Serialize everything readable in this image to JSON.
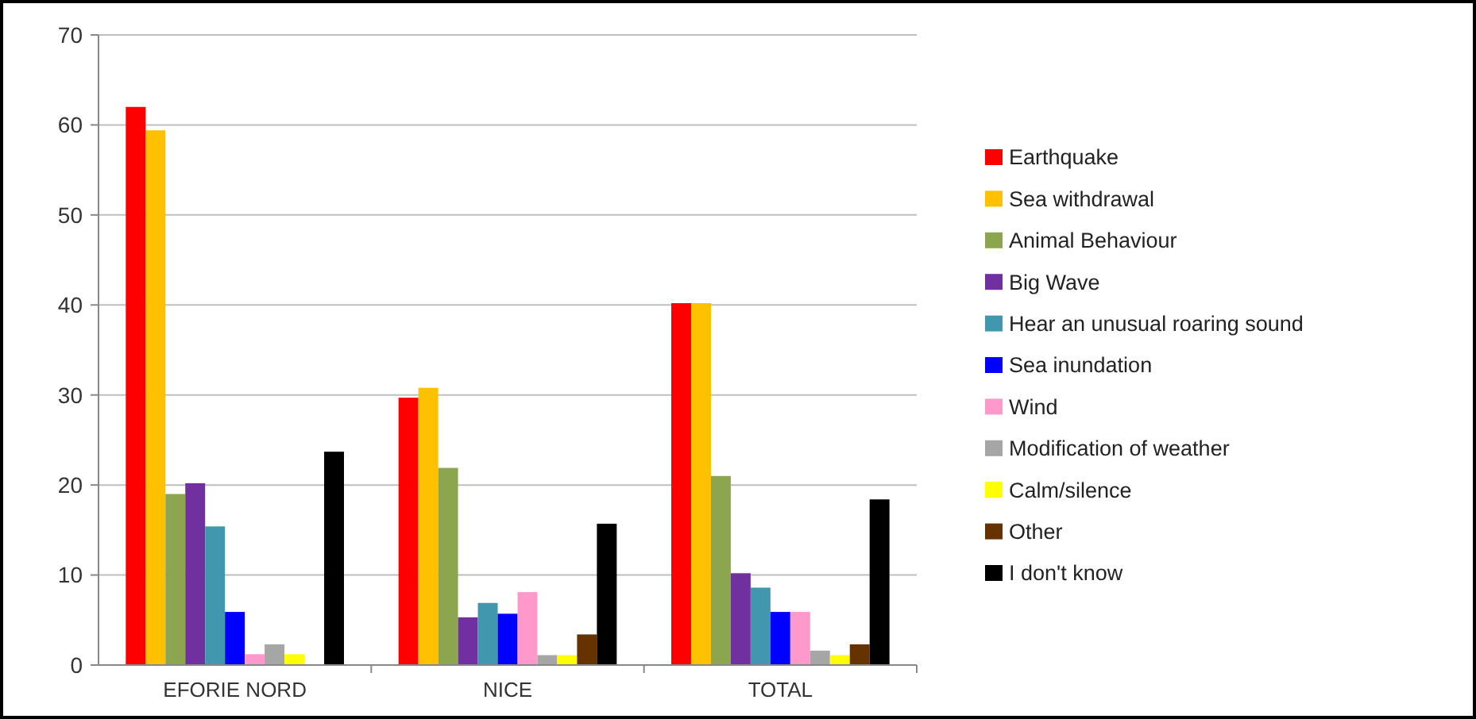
{
  "chart_data": {
    "type": "bar",
    "categories": [
      "EFORIE NORD",
      "NICE",
      "TOTAL"
    ],
    "series": [
      {
        "name": "Earthquake",
        "color": "#ff0000",
        "values": [
          62,
          29.7,
          40.2
        ]
      },
      {
        "name": "Sea withdrawal",
        "color": "#ffc000",
        "values": [
          59.4,
          30.8,
          40.2
        ]
      },
      {
        "name": "Animal Behaviour",
        "color": "#8ba64e",
        "values": [
          19,
          21.9,
          21
        ]
      },
      {
        "name": "Big Wave",
        "color": "#7030a0",
        "values": [
          20.2,
          5.3,
          10.2
        ]
      },
      {
        "name": "Hear an unusual roaring sound",
        "color": "#4198ae",
        "values": [
          15.4,
          6.9,
          8.6
        ]
      },
      {
        "name": "Sea inundation",
        "color": "#0000ff",
        "values": [
          5.9,
          5.7,
          5.9
        ]
      },
      {
        "name": "Wind",
        "color": "#ff99cc",
        "values": [
          1.2,
          8.1,
          5.9
        ]
      },
      {
        "name": "Modification of weather",
        "color": "#a6a6a6",
        "values": [
          2.3,
          1.1,
          1.6
        ]
      },
      {
        "name": "Calm/silence",
        "color": "#ffff00",
        "values": [
          1.2,
          1.1,
          1.1
        ]
      },
      {
        "name": "Other",
        "color": "#663300",
        "values": [
          null,
          3.4,
          2.3
        ]
      },
      {
        "name": "I don't know",
        "color": "#000000",
        "values": [
          23.7,
          15.7,
          18.4
        ]
      }
    ],
    "ylim": [
      0,
      70
    ],
    "yticks": [
      0,
      10,
      20,
      30,
      40,
      50,
      60,
      70
    ],
    "grid": "y",
    "legend": "right"
  }
}
